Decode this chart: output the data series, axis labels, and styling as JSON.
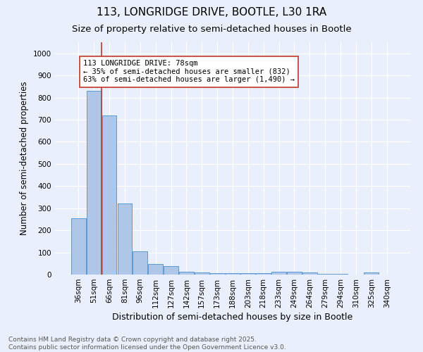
{
  "title": "113, LONGRIDGE DRIVE, BOOTLE, L30 1RA",
  "subtitle": "Size of property relative to semi-detached houses in Bootle",
  "xlabel": "Distribution of semi-detached houses by size in Bootle",
  "ylabel": "Number of semi-detached properties",
  "categories": [
    "36sqm",
    "51sqm",
    "66sqm",
    "81sqm",
    "96sqm",
    "112sqm",
    "127sqm",
    "142sqm",
    "157sqm",
    "173sqm",
    "188sqm",
    "203sqm",
    "218sqm",
    "233sqm",
    "249sqm",
    "264sqm",
    "279sqm",
    "294sqm",
    "310sqm",
    "325sqm",
    "340sqm"
  ],
  "values": [
    255,
    832,
    720,
    320,
    105,
    48,
    38,
    13,
    8,
    6,
    5,
    7,
    5,
    12,
    12,
    8,
    4,
    4,
    0,
    10,
    0
  ],
  "bar_color": "#aec6e8",
  "bar_edge_color": "#5b9bd5",
  "vline_color": "#c0392b",
  "ann_text_line1": "113 LONGRIDGE DRIVE: 78sqm",
  "ann_text_line2": "← 35% of semi-detached houses are smaller (832)",
  "ann_text_line3": "63% of semi-detached houses are larger (1,490) →",
  "footer": "Contains HM Land Registry data © Crown copyright and database right 2025.\nContains public sector information licensed under the Open Government Licence v3.0.",
  "ylim": [
    0,
    1050
  ],
  "yticks": [
    0,
    100,
    200,
    300,
    400,
    500,
    600,
    700,
    800,
    900,
    1000
  ],
  "bg_color": "#eaf0fb",
  "grid_color": "#ffffff",
  "title_fontsize": 11,
  "subtitle_fontsize": 9.5,
  "ylabel_fontsize": 8.5,
  "xlabel_fontsize": 9,
  "tick_fontsize": 7.5,
  "annotation_fontsize": 7.5,
  "footer_fontsize": 6.5
}
